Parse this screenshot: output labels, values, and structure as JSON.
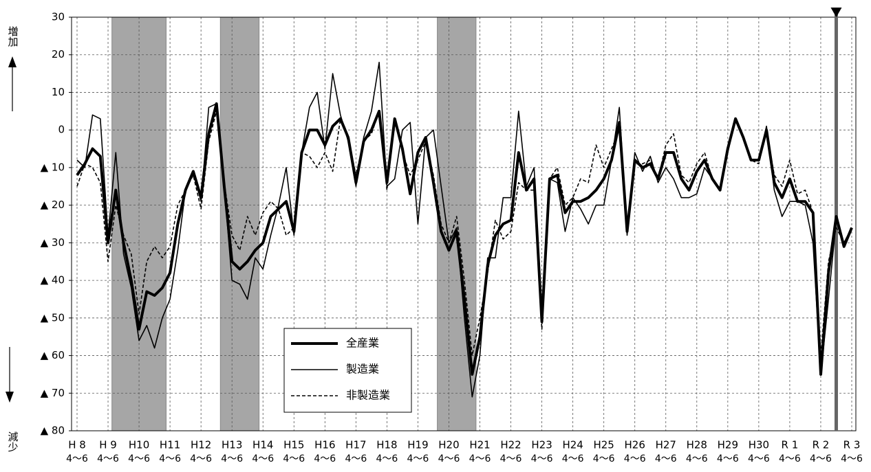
{
  "chart_data": {
    "type": "line",
    "y_label_top": "増加",
    "y_label_bottom": "減少",
    "x_sublabel": "4～6",
    "categories": [
      "H 8",
      null,
      null,
      null,
      "H 9",
      null,
      null,
      null,
      "H10",
      null,
      null,
      null,
      "H11",
      null,
      null,
      null,
      "H12",
      null,
      null,
      null,
      "H13",
      null,
      null,
      null,
      "H14",
      null,
      null,
      null,
      "H15",
      null,
      null,
      null,
      "H16",
      null,
      null,
      null,
      "H17",
      null,
      null,
      null,
      "H18",
      null,
      null,
      null,
      "H19",
      null,
      null,
      null,
      "H20",
      null,
      null,
      null,
      "H21",
      null,
      null,
      null,
      "H22",
      null,
      null,
      null,
      "H23",
      null,
      null,
      null,
      "H24",
      null,
      null,
      null,
      "H25",
      null,
      null,
      null,
      "H26",
      null,
      null,
      null,
      "H27",
      null,
      null,
      null,
      "H28",
      null,
      null,
      null,
      "H29",
      null,
      null,
      null,
      "H30",
      null,
      null,
      null,
      "R 1",
      null,
      null,
      null,
      "R 2",
      null,
      null,
      null,
      "R 3"
    ],
    "series": [
      {
        "name": "全産業",
        "color": "#000000",
        "width": 4,
        "dash": false,
        "values": [
          -12,
          -9,
          -5,
          -7,
          -30,
          -16,
          -30,
          -40,
          -53,
          -43,
          -44,
          -42,
          -38,
          -25,
          -16,
          -11,
          -18,
          -1,
          7,
          -15,
          -35,
          -37,
          -35,
          -32,
          -30,
          -23,
          -21,
          -19,
          -27,
          -6,
          0,
          0,
          -4,
          1,
          3,
          -2,
          -14,
          -3,
          0,
          5,
          -14,
          3,
          -5,
          -17,
          -6,
          -2,
          -14,
          -27,
          -32,
          -27,
          -45,
          -65,
          -55,
          -36,
          -28,
          -25,
          -24,
          -6,
          -16,
          -13,
          -51,
          -13,
          -12,
          -22,
          -19,
          -19,
          -18,
          -16,
          -13,
          -8,
          2,
          -27,
          -8,
          -10,
          -9,
          -13,
          -6,
          -6,
          -13,
          -16,
          -11,
          -8,
          -13,
          -16,
          -5,
          3,
          -2,
          -8,
          -8,
          0,
          -14,
          -18,
          -13,
          -19,
          -19,
          -22,
          -65,
          -38,
          -23,
          -31,
          -26
        ]
      },
      {
        "name": "製造業",
        "color": "#000000",
        "width": 1.6,
        "dash": false,
        "values": [
          -8,
          -10,
          4,
          3,
          -28,
          -6,
          -33,
          -42,
          -56,
          -52,
          -58,
          -50,
          -45,
          -32,
          -16,
          -11,
          -19,
          6,
          7,
          -15,
          -40,
          -41,
          -45,
          -34,
          -37,
          -28,
          -20,
          -10,
          -28,
          -6,
          6,
          10,
          -5,
          15,
          4,
          -3,
          -15,
          -2,
          5,
          18,
          -15,
          -13,
          0,
          2,
          -25,
          -2,
          0,
          -15,
          -30,
          -26,
          -50,
          -71,
          -60,
          -34,
          -34,
          -18,
          -18,
          5,
          -15,
          -10,
          -50,
          -13,
          -14,
          -27,
          -18,
          -21,
          -25,
          -20,
          -20,
          -8,
          6,
          -28,
          -6,
          -11,
          -7,
          -14,
          -10,
          -13,
          -18,
          -18,
          -17,
          -10,
          -13,
          -16,
          -6,
          3,
          -2,
          -8,
          -8,
          1,
          -16,
          -23,
          -19,
          -19,
          -20,
          -30,
          -65,
          -45,
          -24,
          -30,
          -26
        ]
      },
      {
        "name": "非製造業",
        "color": "#000000",
        "width": 1.6,
        "dash": true,
        "values": [
          -15,
          -9,
          -10,
          -14,
          -35,
          -20,
          -28,
          -33,
          -49,
          -35,
          -31,
          -34,
          -31,
          -20,
          -16,
          -12,
          -21,
          -3,
          5,
          -14,
          -28,
          -32,
          -23,
          -28,
          -22,
          -19,
          -21,
          -28,
          -26,
          -6,
          -7,
          -10,
          -6,
          -11,
          3,
          -2,
          -12,
          -3,
          -1,
          5,
          -16,
          3,
          -6,
          -12,
          -8,
          -3,
          -12,
          -25,
          -30,
          -23,
          -40,
          -60,
          -50,
          -38,
          -24,
          -29,
          -27,
          -14,
          -16,
          -16,
          -53,
          -13,
          -10,
          -20,
          -18,
          -13,
          -14,
          -4,
          -10,
          -5,
          0,
          -27,
          -9,
          -9,
          -8,
          -13,
          -4,
          -1,
          -12,
          -14,
          -9,
          -6,
          -13,
          -16,
          -6,
          3,
          -2,
          -8,
          -9,
          0,
          -12,
          -15,
          -8,
          -17,
          -16,
          -22,
          -60,
          -35,
          -26,
          -30,
          -26
        ]
      }
    ],
    "ylim": [
      -80,
      30
    ],
    "yticks": [
      30,
      20,
      10,
      0,
      {
        "value": -10,
        "label": "▲ 10"
      },
      {
        "value": -20,
        "label": "▲ 20"
      },
      {
        "value": -30,
        "label": "▲ 30"
      },
      {
        "value": -40,
        "label": "▲ 40"
      },
      {
        "value": -50,
        "label": "▲ 50"
      },
      {
        "value": -60,
        "label": "▲ 60"
      },
      {
        "value": -70,
        "label": "▲ 70"
      },
      {
        "value": -80,
        "label": "▲ 80"
      }
    ],
    "grid": true,
    "shaded_ranges": [
      [
        5,
        11
      ],
      [
        19,
        23
      ],
      [
        47,
        51
      ]
    ],
    "marker_index": 98,
    "legend": "lower-center"
  }
}
